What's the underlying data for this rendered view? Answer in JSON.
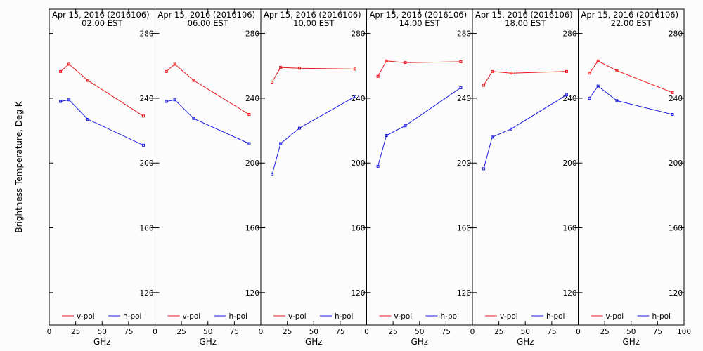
{
  "chart_data": {
    "type": "line",
    "ylabel": "Brightness Temperature, Deg K",
    "ylim": [
      100,
      295
    ],
    "yticks": [
      120,
      160,
      200,
      240,
      280
    ],
    "xlim": [
      0,
      100
    ],
    "xticks": [
      0,
      25,
      50,
      75,
      100
    ],
    "xlabel": "GHz",
    "legend_position": "bottom",
    "series_colors": {
      "v-pol": "#e8161c",
      "h-pol": "#1c1ce0"
    },
    "panels": [
      {
        "title": "Apr 15, 2016 (2016106)",
        "subtitle": "02.00 EST",
        "series": [
          {
            "name": "v-pol",
            "x": [
              10.7,
              18.7,
              36.5,
              89.0
            ],
            "y": [
              256.5,
              261,
              251,
              229
            ]
          },
          {
            "name": "h-pol",
            "x": [
              10.7,
              18.7,
              36.5,
              89.0
            ],
            "y": [
              238,
              239,
              227,
              211
            ]
          }
        ]
      },
      {
        "title": "Apr 15, 2016 (2016106)",
        "subtitle": "06.00 EST",
        "series": [
          {
            "name": "v-pol",
            "x": [
              10.7,
              18.7,
              36.5,
              89.0
            ],
            "y": [
              256.5,
              261,
              251,
              230
            ]
          },
          {
            "name": "h-pol",
            "x": [
              10.7,
              18.7,
              36.5,
              89.0
            ],
            "y": [
              238,
              239,
              227.5,
              212
            ]
          }
        ]
      },
      {
        "title": "Apr 15, 2016 (2016106)",
        "subtitle": "10.00 EST",
        "series": [
          {
            "name": "v-pol",
            "x": [
              10.7,
              18.7,
              36.5,
              89.0
            ],
            "y": [
              250,
              259,
              258.5,
              258
            ]
          },
          {
            "name": "h-pol",
            "x": [
              10.7,
              18.7,
              36.5,
              89.0
            ],
            "y": [
              193,
              212,
              221.5,
              241
            ]
          }
        ]
      },
      {
        "title": "Apr 15, 2016 (2016106)",
        "subtitle": "14.00 EST",
        "series": [
          {
            "name": "v-pol",
            "x": [
              10.7,
              18.7,
              36.5,
              89.0
            ],
            "y": [
              253.5,
              263,
              262,
              262.5
            ]
          },
          {
            "name": "h-pol",
            "x": [
              10.7,
              18.7,
              36.5,
              89.0
            ],
            "y": [
              198,
              217,
              223,
              246.5
            ]
          }
        ]
      },
      {
        "title": "Apr 15, 2016 (2016106)",
        "subtitle": "18.00 EST",
        "series": [
          {
            "name": "v-pol",
            "x": [
              10.7,
              18.7,
              36.5,
              89.0
            ],
            "y": [
              248,
              256.5,
              255.5,
              256.5
            ]
          },
          {
            "name": "h-pol",
            "x": [
              10.7,
              18.7,
              36.5,
              89.0
            ],
            "y": [
              196.5,
              216,
              221,
              242
            ]
          }
        ]
      },
      {
        "title": "Apr 15, 2016 (2016106)",
        "subtitle": "22.00 EST",
        "series": [
          {
            "name": "v-pol",
            "x": [
              10.7,
              18.7,
              36.5,
              89.0
            ],
            "y": [
              255.5,
              263,
              257,
              243.5
            ]
          },
          {
            "name": "h-pol",
            "x": [
              10.7,
              18.7,
              36.5,
              89.0
            ],
            "y": [
              240,
              247.5,
              238.5,
              230
            ]
          }
        ]
      }
    ]
  }
}
